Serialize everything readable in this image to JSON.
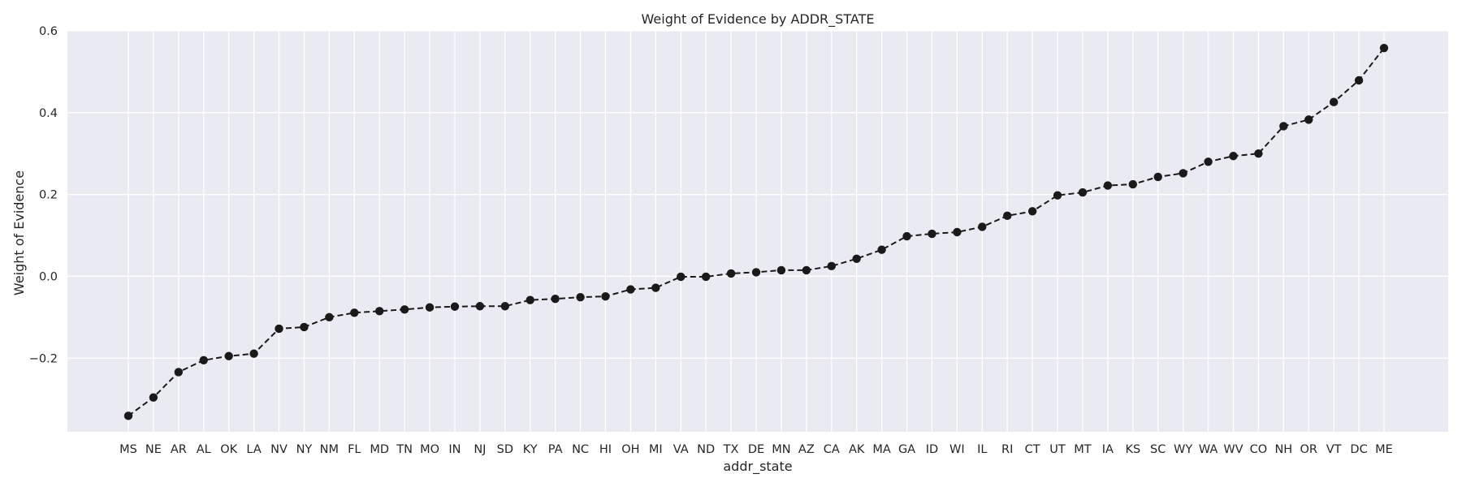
{
  "chart_data": {
    "type": "line",
    "title": "Weight of Evidence by ADDR_STATE",
    "xlabel": "addr_state",
    "ylabel": "Weight of Evidence",
    "ylim": [
      -0.38,
      0.6
    ],
    "yticks": [
      -0.2,
      0.0,
      0.2,
      0.4,
      0.6
    ],
    "ytick_labels": [
      "−0.2",
      "0.0",
      "0.2",
      "0.4",
      "0.6"
    ],
    "grid": true,
    "background_color": "#eaeaf2",
    "grid_color": "#ffffff",
    "line_color": "#1a1a1a",
    "line_style": "dashed",
    "marker": "circle",
    "categories": [
      "MS",
      "NE",
      "AR",
      "AL",
      "OK",
      "LA",
      "NV",
      "NY",
      "NM",
      "FL",
      "MD",
      "TN",
      "MO",
      "IN",
      "NJ",
      "SD",
      "KY",
      "PA",
      "NC",
      "HI",
      "OH",
      "MI",
      "VA",
      "ND",
      "TX",
      "DE",
      "MN",
      "AZ",
      "CA",
      "AK",
      "MA",
      "GA",
      "ID",
      "WI",
      "IL",
      "RI",
      "CT",
      "UT",
      "MT",
      "IA",
      "KS",
      "SC",
      "WY",
      "WA",
      "WV",
      "CO",
      "NH",
      "OR",
      "VT",
      "DC",
      "ME"
    ],
    "series": [
      {
        "values": [
          -0.341,
          -0.296,
          -0.234,
          -0.205,
          -0.195,
          -0.189,
          -0.128,
          -0.124,
          -0.1,
          -0.089,
          -0.085,
          -0.081,
          -0.076,
          -0.074,
          -0.073,
          -0.073,
          -0.058,
          -0.055,
          -0.051,
          -0.049,
          -0.032,
          -0.028,
          -0.001,
          -0.001,
          0.007,
          0.01,
          0.015,
          0.015,
          0.025,
          0.043,
          0.065,
          0.098,
          0.104,
          0.108,
          0.121,
          0.148,
          0.159,
          0.198,
          0.205,
          0.222,
          0.225,
          0.243,
          0.252,
          0.28,
          0.294,
          0.3,
          0.367,
          0.383,
          0.426,
          0.479,
          0.558
        ]
      }
    ]
  }
}
